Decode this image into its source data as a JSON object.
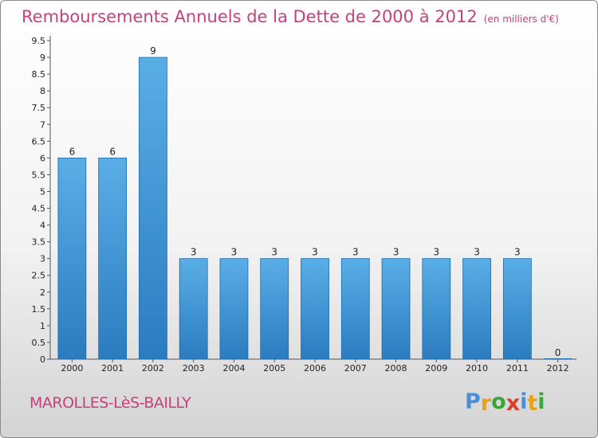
{
  "header": {
    "title": "Remboursements Annuels de la Dette de 2000 à 2012",
    "subtitle": "(en milliers d'€)"
  },
  "footer": {
    "city": "MAROLLES-LèS-BAILLY",
    "brand": "Proxiti",
    "brand_colors": [
      "#4a8fd6",
      "#e8a21a",
      "#3aa53a",
      "#d8402a",
      "#4a8fd6",
      "#e8a21a",
      "#3aa53a"
    ]
  },
  "chart_data": {
    "type": "bar",
    "title": "Remboursements Annuels de la Dette de 2000 à 2012",
    "subtitle": "(en milliers d'€)",
    "categories": [
      "2000",
      "2001",
      "2002",
      "2003",
      "2004",
      "2005",
      "2006",
      "2007",
      "2008",
      "2009",
      "2010",
      "2011",
      "2012"
    ],
    "values": [
      6,
      6,
      9,
      3,
      3,
      3,
      3,
      3,
      3,
      3,
      3,
      3,
      0
    ],
    "data_labels": [
      "6",
      "6",
      "9",
      "3",
      "3",
      "3",
      "3",
      "3",
      "3",
      "3",
      "3",
      "3",
      "0"
    ],
    "ylim": [
      0,
      9.5
    ],
    "yticks": [
      "0",
      "0.5",
      "1",
      "1.5",
      "2",
      "2.5",
      "3",
      "3.5",
      "4",
      "4.5",
      "5",
      "5.5",
      "6",
      "6.5",
      "7",
      "7.5",
      "8",
      "8.5",
      "9",
      "9.5"
    ],
    "grid": false,
    "legend": "none",
    "bar_color_top": "#5aaee6",
    "bar_color_bottom": "#2a7cc0",
    "bar_edge_color": "#1f6aa8"
  }
}
